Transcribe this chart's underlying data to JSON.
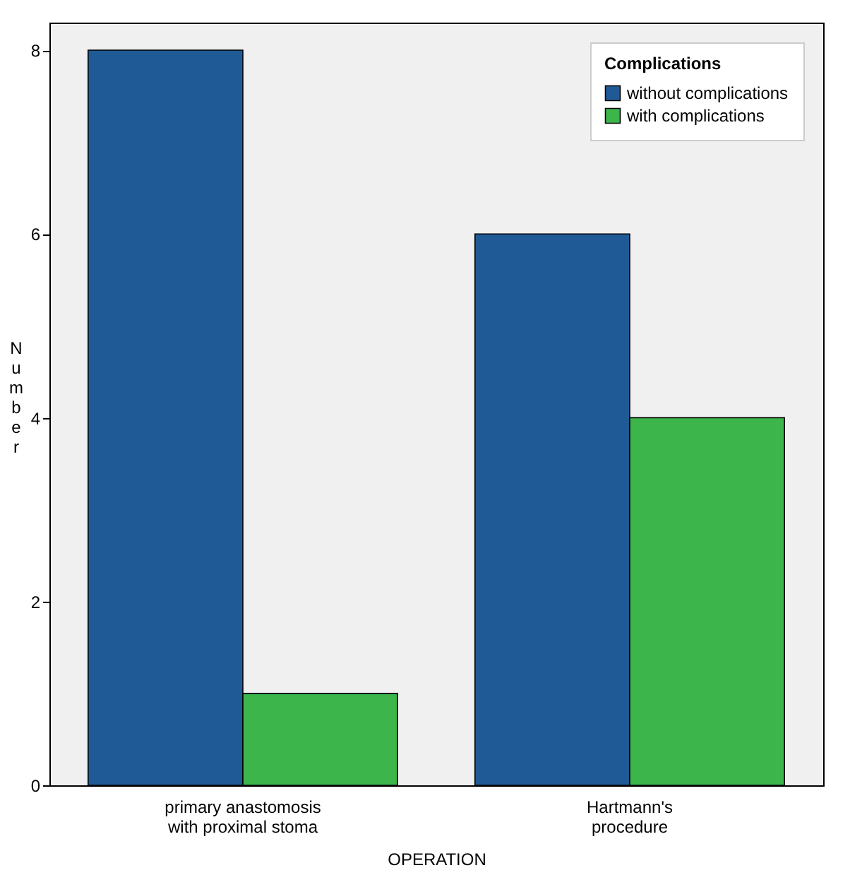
{
  "chart_data": {
    "type": "bar",
    "xlabel": "OPERATION",
    "ylabel": "Number",
    "legend_title": "Complications",
    "categories": [
      "primary anastomosis with proximal stoma",
      "Hartmann's procedure"
    ],
    "series": [
      {
        "name": "without complications",
        "color": "#1f5a96",
        "values": [
          8,
          6
        ]
      },
      {
        "name": "with complications",
        "color": "#3cb54a",
        "values": [
          1,
          4
        ]
      }
    ],
    "ylim": [
      0,
      8.3
    ],
    "yticks": [
      0,
      2,
      4,
      6,
      8
    ],
    "grid": false,
    "legend": "top right"
  }
}
